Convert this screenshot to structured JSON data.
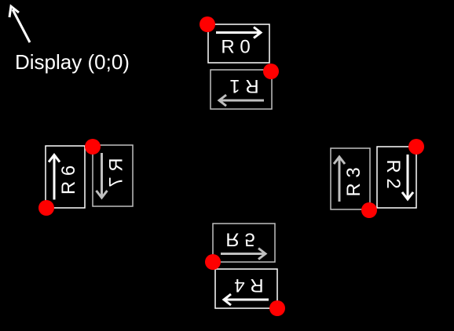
{
  "origin": {
    "label": "Display (0;0)"
  },
  "colors": {
    "background": "#000000",
    "primary": "#ffffff",
    "secondary": "#bfbfbf",
    "marker": "#ff0000"
  },
  "rects": [
    {
      "id": "r0",
      "label": "R 0"
    },
    {
      "id": "r1",
      "label": "R 1"
    },
    {
      "id": "r2",
      "label": "R 2"
    },
    {
      "id": "r3",
      "label": "R 3"
    },
    {
      "id": "r4",
      "label": "R 4"
    },
    {
      "id": "r5",
      "label": "R 5"
    },
    {
      "id": "r6",
      "label": "R 6"
    },
    {
      "id": "r7",
      "label": "R 7"
    }
  ]
}
